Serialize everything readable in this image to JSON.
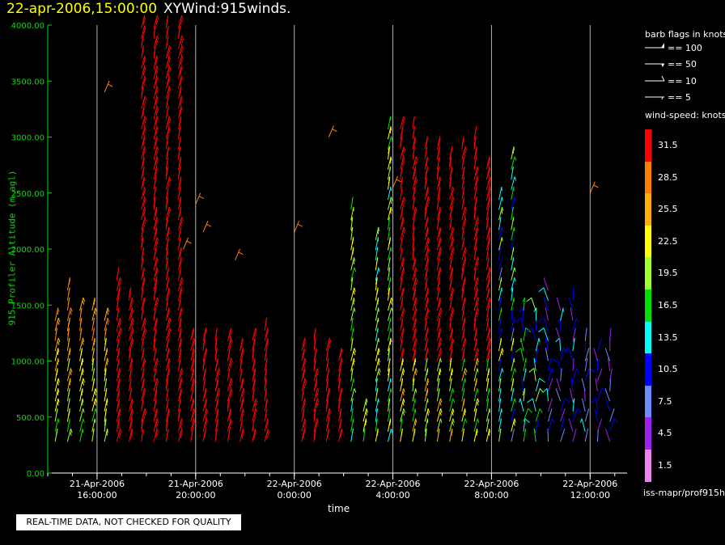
{
  "header": {
    "date_text": "22-apr-2006,15:00:00",
    "product_text": "XYWind:915winds."
  },
  "legend": {
    "barb_title": "barb flags in knots",
    "barb_items": [
      "== 100",
      "== 50",
      "== 10",
      "== 5"
    ],
    "speed_title": "wind-speed: knots",
    "colorbar": [
      {
        "label": "31.5",
        "color": "#ff0000"
      },
      {
        "label": "28.5",
        "color": "#ff8000"
      },
      {
        "label": "25.5",
        "color": "#ffb000"
      },
      {
        "label": "22.5",
        "color": "#ffff00"
      },
      {
        "label": "19.5",
        "color": "#a0ff30"
      },
      {
        "label": "16.5",
        "color": "#00e000"
      },
      {
        "label": "13.5",
        "color": "#00ffff"
      },
      {
        "label": "10.5",
        "color": "#0000ff"
      },
      {
        "label": "7.5",
        "color": "#6a8cff"
      },
      {
        "label": "4.5",
        "color": "#a020f0"
      },
      {
        "label": "1.5",
        "color": "#ee82ee"
      }
    ],
    "source_text": "iss-mapr/prof915h"
  },
  "disclaimer": "REAL-TIME DATA, NOT CHECKED FOR QUALITY",
  "chart_data": {
    "type": "scatter",
    "title": "22-apr-2006,15:00:00  XYWind:915winds.",
    "xlabel": "time",
    "ylabel": "915 Profiler Altitude (m agl)",
    "x_tick_labels": [
      [
        "21-Apr-2006",
        "16:00:00"
      ],
      [
        "21-Apr-2006",
        "20:00:00"
      ],
      [
        "22-Apr-2006",
        "0:00:00"
      ],
      [
        "22-Apr-2006",
        "4:00:00"
      ],
      [
        "22-Apr-2006",
        "8:00:00"
      ],
      [
        "22-Apr-2006",
        "12:00:00"
      ]
    ],
    "y_ticks": [
      "0.00",
      "500.00",
      "1000.00",
      "1500.00",
      "2000.00",
      "2500.00",
      "3000.00",
      "3500.00",
      "4000.00"
    ],
    "ylim": [
      0,
      4000
    ],
    "xlim_hours": [
      -1,
      22.5
    ],
    "grid": "vertical lines at labeled times",
    "units": "knots",
    "series": [
      {
        "name": "time-height wind barbs",
        "time_range": [
          "2006-04-21 15:00",
          "2006-04-22 14:30"
        ],
        "altitude_range_m": [
          250,
          4000
        ],
        "speed_range_knots": [
          1.5,
          31.5
        ]
      }
    ]
  }
}
